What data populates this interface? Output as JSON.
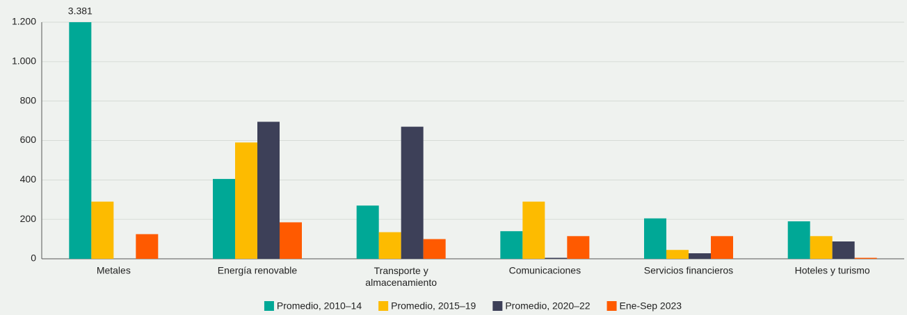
{
  "chart_data": {
    "type": "bar",
    "categories": [
      "Metales",
      "Energía renovable",
      "Transporte y\nalmacenamiento",
      "Comunicaciones",
      "Servicios financieros",
      "Hoteles y turismo"
    ],
    "series": [
      {
        "name": "Promedio, 2010–14",
        "color": "#00a896",
        "values": [
          3381,
          405,
          270,
          140,
          205,
          190
        ],
        "value_labels": [
          "3.381",
          null,
          null,
          null,
          null,
          null
        ]
      },
      {
        "name": "Promedio, 2015–19",
        "color": "#fdbb00",
        "values": [
          290,
          590,
          135,
          290,
          45,
          115
        ]
      },
      {
        "name": "Promedio, 2020–22",
        "color": "#3d4058",
        "values": [
          null,
          695,
          670,
          5,
          28,
          88
        ]
      },
      {
        "name": "Ene-Sep 2023",
        "color": "#ff5a00",
        "values": [
          125,
          185,
          100,
          115,
          115,
          5
        ]
      }
    ],
    "ylim": [
      0,
      1200
    ],
    "yticks": [
      0,
      200,
      400,
      600,
      800,
      {
        "value": 1000,
        "label": "1.000"
      },
      {
        "value": 1200,
        "label": "1.200"
      }
    ],
    "grid": true,
    "legend": "bottom"
  }
}
